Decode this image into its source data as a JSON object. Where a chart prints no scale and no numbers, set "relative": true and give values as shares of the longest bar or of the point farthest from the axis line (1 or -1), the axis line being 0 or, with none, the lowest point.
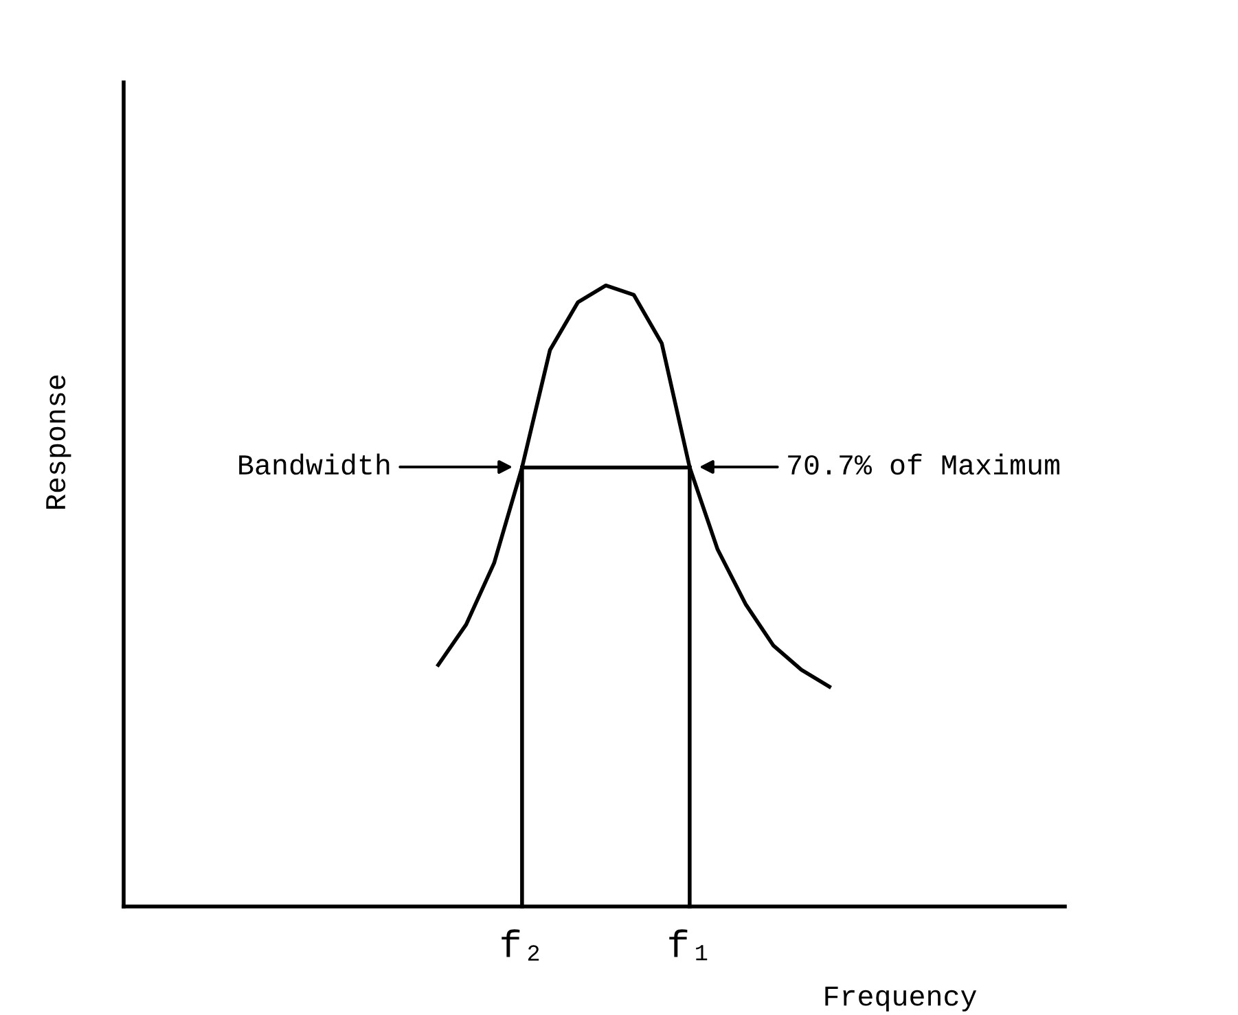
{
  "chart_data": {
    "type": "line",
    "relative": true,
    "xlabel": "Frequency",
    "categories": [
      null,
      null,
      null,
      "f₂",
      null,
      null,
      null,
      null,
      null,
      "f₁",
      null,
      null,
      null,
      null,
      null
    ],
    "series": [
      {
        "color": "#000000",
        "values": [
          0.389,
          0.454,
          0.553,
          0.707,
          0.896,
          0.973,
          1,
          0.985,
          0.907,
          0.707,
          0.575,
          0.487,
          0.42,
          0.381,
          0.354
        ]
      },
      {
        "color": "#000000",
        "x": [
          "f₂",
          "f₁"
        ],
        "values": [
          0.707,
          0.707
        ]
      },
      {
        "color": "#000000",
        "x": [
          "f₂",
          "f₂"
        ],
        "values": [
          0,
          0.707
        ]
      },
      {
        "color": "#000000",
        "x": [
          "f₁",
          "f₁"
        ],
        "values": [
          0,
          0.707
        ]
      }
    ],
    "annotations": [
      "Bandwidth",
      "70.7% of Maximum",
      "Response"
    ],
    "grid": false,
    "legend": false,
    "marker": "none",
    "line_style": "solid"
  }
}
